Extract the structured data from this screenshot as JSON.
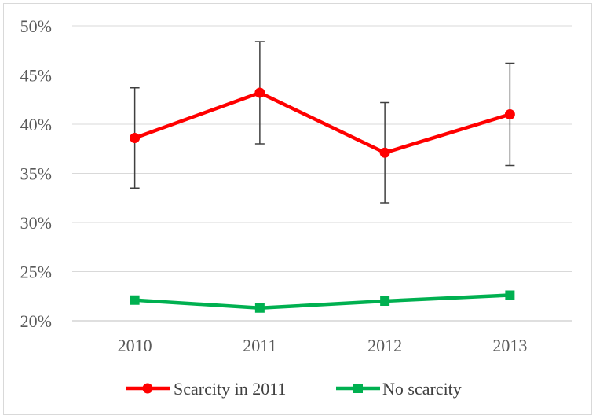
{
  "chart_data": {
    "type": "line",
    "title": "",
    "xlabel": "",
    "ylabel": "",
    "categories": [
      "2010",
      "2011",
      "2012",
      "2013"
    ],
    "ylim": [
      0.2,
      0.5
    ],
    "ytick_values": [
      0.2,
      0.25,
      0.3,
      0.35,
      0.4,
      0.45,
      0.5
    ],
    "ytick_labels": [
      "20%",
      "25%",
      "30%",
      "35%",
      "40%",
      "45%",
      "50%"
    ],
    "grid": true,
    "legend_position": "bottom",
    "series": [
      {
        "name": "Scarcity in 2011",
        "color": "#ff0000",
        "marker": "circle",
        "values": [
          0.386,
          0.432,
          0.371,
          0.41
        ],
        "error_low": [
          0.335,
          0.38,
          0.32,
          0.358
        ],
        "error_high": [
          0.437,
          0.484,
          0.422,
          0.462
        ]
      },
      {
        "name": "No scarcity",
        "color": "#00b050",
        "marker": "square",
        "values": [
          0.221,
          0.213,
          0.22,
          0.226
        ]
      }
    ]
  }
}
